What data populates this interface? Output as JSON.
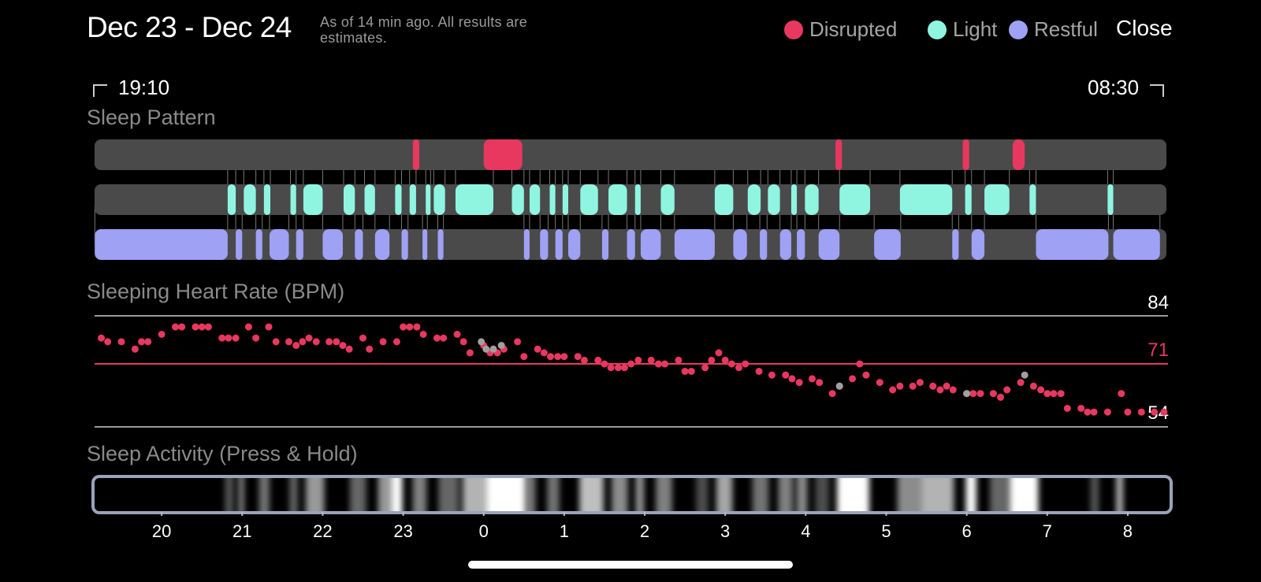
{
  "header": {
    "title": "Dec 23 - Dec 24",
    "subtitle": "As of 14 min ago. All results are estimates.",
    "close_label": "Close"
  },
  "legend": [
    {
      "label": "Disrupted",
      "color": "#e8385f"
    },
    {
      "label": "Light",
      "color": "#8ff5e1"
    },
    {
      "label": "Restful",
      "color": "#9ea1f4"
    }
  ],
  "time_range": {
    "start": "19:10",
    "end": "08:30"
  },
  "sections": {
    "sleep_pattern": "Sleep Pattern",
    "heart_rate": "Sleeping Heart Rate (BPM)",
    "activity": "Sleep Activity (Press & Hold)"
  },
  "colors": {
    "track": "#4a4a4a",
    "disrupted": "#e8385f",
    "light": "#8ff5e1",
    "restful": "#9ea1f4",
    "missing": "#a0a0a0"
  },
  "x_axis": {
    "start_hour": 19.1667,
    "end_hour": 32.5,
    "ticks": [
      {
        "label": "20",
        "hour": 20
      },
      {
        "label": "21",
        "hour": 21
      },
      {
        "label": "22",
        "hour": 22
      },
      {
        "label": "23",
        "hour": 23
      },
      {
        "label": "0",
        "hour": 24
      },
      {
        "label": "1",
        "hour": 25
      },
      {
        "label": "2",
        "hour": 26
      },
      {
        "label": "3",
        "hour": 27
      },
      {
        "label": "4",
        "hour": 28
      },
      {
        "label": "5",
        "hour": 29
      },
      {
        "label": "6",
        "hour": 30
      },
      {
        "label": "7",
        "hour": 31
      },
      {
        "label": "8",
        "hour": 32
      }
    ]
  },
  "sleep_pattern": {
    "disrupted": [
      [
        23.12,
        23.2
      ],
      [
        24.0,
        24.48
      ],
      [
        28.37,
        28.45
      ],
      [
        29.95,
        30.03
      ],
      [
        30.57,
        30.72
      ]
    ],
    "light": [
      [
        20.82,
        20.92
      ],
      [
        21.02,
        21.17
      ],
      [
        21.27,
        21.35
      ],
      [
        21.6,
        21.67
      ],
      [
        21.76,
        22.0
      ],
      [
        22.26,
        22.4
      ],
      [
        22.52,
        22.65
      ],
      [
        22.9,
        22.98
      ],
      [
        23.08,
        23.16
      ],
      [
        23.28,
        23.34
      ],
      [
        23.38,
        23.52
      ],
      [
        23.65,
        24.12
      ],
      [
        24.35,
        24.5
      ],
      [
        24.57,
        24.7
      ],
      [
        24.82,
        24.89
      ],
      [
        24.98,
        25.05
      ],
      [
        25.2,
        25.42
      ],
      [
        25.55,
        25.78
      ],
      [
        25.88,
        25.95
      ],
      [
        26.2,
        26.37
      ],
      [
        26.87,
        27.1
      ],
      [
        27.28,
        27.44
      ],
      [
        27.53,
        27.68
      ],
      [
        27.82,
        27.89
      ],
      [
        27.99,
        28.16
      ],
      [
        28.42,
        28.8
      ],
      [
        29.17,
        29.82
      ],
      [
        29.98,
        30.06
      ],
      [
        30.22,
        30.53
      ],
      [
        30.78,
        30.86
      ],
      [
        31.75,
        31.82
      ]
    ],
    "restful": [
      [
        19.17,
        20.82
      ],
      [
        20.92,
        21.0
      ],
      [
        21.17,
        21.25
      ],
      [
        21.34,
        21.58
      ],
      [
        21.67,
        21.76
      ],
      [
        22.0,
        22.25
      ],
      [
        22.4,
        22.5
      ],
      [
        22.65,
        22.83
      ],
      [
        22.98,
        23.06
      ],
      [
        23.24,
        23.3
      ],
      [
        23.43,
        23.5
      ],
      [
        24.5,
        24.57
      ],
      [
        24.7,
        24.8
      ],
      [
        24.89,
        24.98
      ],
      [
        25.05,
        25.2
      ],
      [
        25.47,
        25.55
      ],
      [
        25.78,
        25.88
      ],
      [
        25.95,
        26.2
      ],
      [
        26.37,
        26.87
      ],
      [
        27.1,
        27.27
      ],
      [
        27.43,
        27.52
      ],
      [
        27.68,
        27.82
      ],
      [
        27.89,
        27.99
      ],
      [
        28.16,
        28.42
      ],
      [
        28.85,
        29.18
      ],
      [
        29.82,
        29.9
      ],
      [
        30.06,
        30.22
      ],
      [
        30.86,
        31.76
      ],
      [
        31.82,
        32.4
      ]
    ]
  },
  "heart_rate": {
    "labels": {
      "max": "84",
      "avg": "71",
      "min": "54"
    },
    "max": 84,
    "avg": 71,
    "min": 54,
    "points": [
      [
        19.25,
        78
      ],
      [
        19.33,
        77
      ],
      [
        19.5,
        77
      ],
      [
        19.67,
        75
      ],
      [
        19.75,
        77
      ],
      [
        19.83,
        77
      ],
      [
        20.0,
        79
      ],
      [
        20.17,
        81
      ],
      [
        20.25,
        81
      ],
      [
        20.42,
        81
      ],
      [
        20.5,
        81
      ],
      [
        20.58,
        81
      ],
      [
        20.75,
        78
      ],
      [
        20.83,
        78
      ],
      [
        20.92,
        78
      ],
      [
        21.08,
        81
      ],
      [
        21.17,
        78
      ],
      [
        21.33,
        81
      ],
      [
        21.42,
        77
      ],
      [
        21.58,
        77
      ],
      [
        21.67,
        76
      ],
      [
        21.75,
        77
      ],
      [
        21.83,
        78
      ],
      [
        21.92,
        77
      ],
      [
        22.08,
        77
      ],
      [
        22.17,
        77
      ],
      [
        22.25,
        76
      ],
      [
        22.33,
        75
      ],
      [
        22.5,
        78
      ],
      [
        22.58,
        75
      ],
      [
        22.75,
        77
      ],
      [
        22.92,
        77
      ],
      [
        23.0,
        81
      ],
      [
        23.08,
        81
      ],
      [
        23.17,
        81
      ],
      [
        23.25,
        79
      ],
      [
        23.42,
        78
      ],
      [
        23.5,
        78
      ],
      [
        23.67,
        79
      ],
      [
        23.75,
        77
      ],
      [
        23.83,
        74
      ],
      [
        24.0,
        76
      ],
      [
        24.08,
        74
      ],
      [
        24.17,
        74
      ],
      [
        24.25,
        75
      ],
      [
        24.42,
        77
      ],
      [
        24.5,
        73
      ],
      [
        24.67,
        75
      ],
      [
        24.75,
        74
      ],
      [
        24.83,
        73
      ],
      [
        24.92,
        73
      ],
      [
        25.0,
        73
      ],
      [
        25.17,
        73
      ],
      [
        25.25,
        72
      ],
      [
        25.42,
        72
      ],
      [
        25.5,
        71
      ],
      [
        25.58,
        70
      ],
      [
        25.67,
        70
      ],
      [
        25.75,
        70
      ],
      [
        25.83,
        71
      ],
      [
        25.92,
        72
      ],
      [
        26.08,
        72
      ],
      [
        26.17,
        71
      ],
      [
        26.25,
        71
      ],
      [
        26.42,
        72
      ],
      [
        26.5,
        69
      ],
      [
        26.58,
        69
      ],
      [
        26.75,
        70
      ],
      [
        26.83,
        72
      ],
      [
        26.92,
        74
      ],
      [
        27.0,
        72
      ],
      [
        27.08,
        71
      ],
      [
        27.17,
        70
      ],
      [
        27.25,
        71
      ],
      [
        27.42,
        69
      ],
      [
        27.58,
        68
      ],
      [
        27.75,
        68
      ],
      [
        27.83,
        67
      ],
      [
        27.92,
        66
      ],
      [
        28.08,
        67
      ],
      [
        28.17,
        66
      ],
      [
        28.33,
        63
      ],
      [
        28.42,
        65
      ],
      [
        28.58,
        67
      ],
      [
        28.67,
        71
      ],
      [
        28.75,
        68
      ],
      [
        28.92,
        66
      ],
      [
        29.08,
        64
      ],
      [
        29.17,
        65
      ],
      [
        29.33,
        65
      ],
      [
        29.42,
        66
      ],
      [
        29.58,
        65
      ],
      [
        29.67,
        64
      ],
      [
        29.75,
        65
      ],
      [
        29.83,
        64
      ],
      [
        30.0,
        63
      ],
      [
        30.08,
        63
      ],
      [
        30.17,
        63
      ],
      [
        30.33,
        63
      ],
      [
        30.42,
        62
      ],
      [
        30.5,
        64
      ],
      [
        30.67,
        66
      ],
      [
        30.83,
        65
      ],
      [
        30.92,
        64
      ],
      [
        31.0,
        63
      ],
      [
        31.08,
        63
      ],
      [
        31.17,
        63
      ],
      [
        31.25,
        59
      ],
      [
        31.42,
        59
      ],
      [
        31.5,
        58
      ],
      [
        31.58,
        58
      ],
      [
        31.75,
        58
      ],
      [
        31.92,
        63
      ],
      [
        32.0,
        58
      ],
      [
        32.17,
        58
      ],
      [
        32.33,
        58
      ],
      [
        32.45,
        58
      ]
    ],
    "missing_points": [
      [
        23.97,
        77
      ],
      [
        24.03,
        75
      ],
      [
        24.12,
        75
      ],
      [
        24.22,
        76
      ],
      [
        28.42,
        65
      ],
      [
        30.0,
        63
      ],
      [
        30.72,
        68
      ]
    ]
  },
  "activity": {
    "bright_bands": [
      [
        20.75,
        20.85,
        0.35
      ],
      [
        20.92,
        20.98,
        0.6
      ],
      [
        21.17,
        21.3,
        0.45
      ],
      [
        21.55,
        21.65,
        0.4
      ],
      [
        21.75,
        21.98,
        0.6
      ],
      [
        22.3,
        22.5,
        0.4
      ],
      [
        22.65,
        22.82,
        0.6
      ],
      [
        22.82,
        22.95,
        1.0
      ],
      [
        23.08,
        23.25,
        0.5
      ],
      [
        23.4,
        23.65,
        0.4
      ],
      [
        23.7,
        24.0,
        0.7
      ],
      [
        24.0,
        24.48,
        1.0
      ],
      [
        24.5,
        24.6,
        0.5
      ],
      [
        24.75,
        24.9,
        0.45
      ],
      [
        25.15,
        25.45,
        0.75
      ],
      [
        25.55,
        25.75,
        0.55
      ],
      [
        25.85,
        25.95,
        0.6
      ],
      [
        26.1,
        26.3,
        0.5
      ],
      [
        26.6,
        26.75,
        0.3
      ],
      [
        26.85,
        27.05,
        0.65
      ],
      [
        27.3,
        27.5,
        0.45
      ],
      [
        27.62,
        27.8,
        0.5
      ],
      [
        27.85,
        27.98,
        0.55
      ],
      [
        28.08,
        28.25,
        0.3
      ],
      [
        28.35,
        28.75,
        1.0
      ],
      [
        29.1,
        29.4,
        0.55
      ],
      [
        29.4,
        29.8,
        0.7
      ],
      [
        29.95,
        30.08,
        1.0
      ],
      [
        30.25,
        30.5,
        0.4
      ],
      [
        30.5,
        30.85,
        1.0
      ],
      [
        31.5,
        31.6,
        0.35
      ],
      [
        31.82,
        31.9,
        0.75
      ]
    ]
  }
}
